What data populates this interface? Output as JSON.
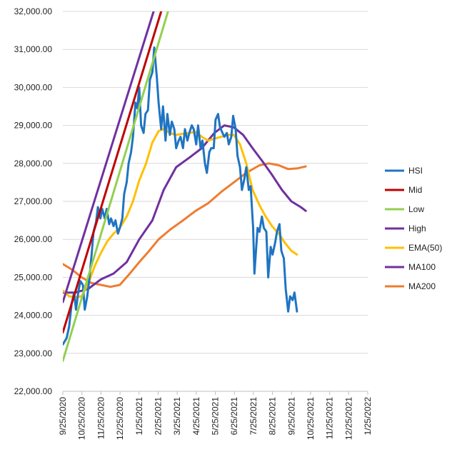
{
  "chart_data": {
    "type": "line",
    "title": "",
    "xlabel": "",
    "ylabel": "",
    "ylim": [
      22000,
      32000
    ],
    "y_ticks": [
      "22,000.00",
      "23,000.00",
      "24,000.00",
      "25,000.00",
      "26,000.00",
      "27,000.00",
      "28,000.00",
      "29,000.00",
      "30,000.00",
      "31,000.00",
      "32,000.00"
    ],
    "x_ticks": [
      "9/25/2020",
      "10/25/2020",
      "11/25/2020",
      "12/25/2020",
      "1/25/2021",
      "2/25/2021",
      "3/25/2021",
      "4/25/2021",
      "5/25/2021",
      "6/25/2021",
      "7/25/2021",
      "8/25/2021",
      "9/25/2021",
      "10/25/2021",
      "11/25/2021",
      "12/25/2021",
      "1/25/2022"
    ],
    "grid": "horizontal",
    "legend_position": "right",
    "series": [
      {
        "name": "HSI",
        "color": "#1f74c2",
        "points": [
          [
            "2020-09-25",
            23235
          ],
          [
            "2020-10-01",
            23400
          ],
          [
            "2020-10-05",
            23700
          ],
          [
            "2020-10-09",
            24300
          ],
          [
            "2020-10-13",
            24600
          ],
          [
            "2020-10-16",
            24150
          ],
          [
            "2020-10-20",
            24650
          ],
          [
            "2020-10-23",
            24900
          ],
          [
            "2020-10-27",
            24800
          ],
          [
            "2020-10-30",
            24150
          ],
          [
            "2020-11-03",
            24500
          ],
          [
            "2020-11-06",
            24900
          ],
          [
            "2020-11-10",
            25600
          ],
          [
            "2020-11-13",
            26200
          ],
          [
            "2020-11-17",
            26450
          ],
          [
            "2020-11-20",
            26850
          ],
          [
            "2020-11-24",
            26550
          ],
          [
            "2020-11-27",
            26800
          ],
          [
            "2020-12-01",
            26550
          ],
          [
            "2020-12-04",
            26800
          ],
          [
            "2020-12-08",
            26400
          ],
          [
            "2020-12-11",
            26550
          ],
          [
            "2020-12-15",
            26350
          ],
          [
            "2020-12-18",
            26500
          ],
          [
            "2020-12-22",
            26150
          ],
          [
            "2020-12-25",
            26300
          ],
          [
            "2020-12-29",
            26550
          ],
          [
            "2021-01-01",
            27200
          ],
          [
            "2021-01-05",
            27500
          ],
          [
            "2021-01-08",
            28000
          ],
          [
            "2021-01-12",
            28300
          ],
          [
            "2021-01-15",
            28700
          ],
          [
            "2021-01-19",
            29600
          ],
          [
            "2021-01-22",
            29450
          ],
          [
            "2021-01-25",
            30000
          ],
          [
            "2021-01-28",
            29000
          ],
          [
            "2021-02-01",
            28800
          ],
          [
            "2021-02-04",
            29300
          ],
          [
            "2021-02-08",
            29400
          ],
          [
            "2021-02-11",
            30200
          ],
          [
            "2021-02-15",
            30400
          ],
          [
            "2021-02-18",
            31050
          ],
          [
            "2021-02-22",
            30300
          ],
          [
            "2021-02-25",
            29600
          ],
          [
            "2021-03-01",
            28900
          ],
          [
            "2021-03-04",
            29500
          ],
          [
            "2021-03-08",
            28600
          ],
          [
            "2021-03-11",
            29300
          ],
          [
            "2021-03-15",
            28750
          ],
          [
            "2021-03-18",
            29100
          ],
          [
            "2021-03-22",
            28900
          ],
          [
            "2021-03-25",
            28400
          ],
          [
            "2021-03-29",
            28600
          ],
          [
            "2021-04-01",
            28700
          ],
          [
            "2021-04-05",
            28400
          ],
          [
            "2021-04-08",
            28900
          ],
          [
            "2021-04-12",
            28600
          ],
          [
            "2021-04-15",
            28800
          ],
          [
            "2021-04-19",
            29000
          ],
          [
            "2021-04-22",
            28900
          ],
          [
            "2021-04-26",
            28500
          ],
          [
            "2021-04-29",
            29000
          ],
          [
            "2021-05-03",
            28400
          ],
          [
            "2021-05-06",
            28600
          ],
          [
            "2021-05-10",
            28000
          ],
          [
            "2021-05-13",
            27750
          ],
          [
            "2021-05-17",
            28300
          ],
          [
            "2021-05-20",
            28400
          ],
          [
            "2021-05-24",
            28400
          ],
          [
            "2021-05-27",
            29150
          ],
          [
            "2021-05-31",
            29300
          ],
          [
            "2021-06-03",
            28950
          ],
          [
            "2021-06-07",
            28800
          ],
          [
            "2021-06-10",
            28700
          ],
          [
            "2021-06-14",
            28800
          ],
          [
            "2021-06-17",
            28500
          ],
          [
            "2021-06-21",
            28700
          ],
          [
            "2021-06-24",
            29250
          ],
          [
            "2021-06-28",
            28900
          ],
          [
            "2021-07-01",
            28200
          ],
          [
            "2021-07-05",
            27900
          ],
          [
            "2021-07-08",
            27300
          ],
          [
            "2021-07-12",
            27600
          ],
          [
            "2021-07-15",
            27900
          ],
          [
            "2021-07-19",
            27300
          ],
          [
            "2021-07-22",
            27400
          ],
          [
            "2021-07-26",
            26300
          ],
          [
            "2021-07-28",
            25100
          ],
          [
            "2021-08-02",
            26300
          ],
          [
            "2021-08-05",
            26200
          ],
          [
            "2021-08-09",
            26600
          ],
          [
            "2021-08-12",
            26300
          ],
          [
            "2021-08-16",
            26200
          ],
          [
            "2021-08-19",
            25000
          ],
          [
            "2021-08-23",
            25800
          ],
          [
            "2021-08-26",
            25600
          ],
          [
            "2021-08-30",
            25900
          ],
          [
            "2021-09-02",
            26200
          ],
          [
            "2021-09-06",
            26400
          ],
          [
            "2021-09-09",
            25700
          ],
          [
            "2021-09-13",
            25500
          ],
          [
            "2021-09-16",
            24700
          ],
          [
            "2021-09-20",
            24100
          ],
          [
            "2021-09-23",
            24500
          ],
          [
            "2021-09-27",
            24400
          ],
          [
            "2021-09-30",
            24600
          ],
          [
            "2021-10-04",
            24100
          ]
        ]
      },
      {
        "name": "Mid",
        "color": "#c00000",
        "points": [
          [
            "2020-09-25",
            23550
          ],
          [
            "2021-03-01",
            32000
          ]
        ]
      },
      {
        "name": "Low",
        "color": "#92d050",
        "points": [
          [
            "2020-09-25",
            22800
          ],
          [
            "2021-03-12",
            32000
          ]
        ]
      },
      {
        "name": "High",
        "color": "#7030a0",
        "points": [
          [
            "2020-09-25",
            24350
          ],
          [
            "2021-02-17",
            32000
          ]
        ]
      },
      {
        "name": "EMA(50)",
        "color": "#ffc000",
        "points": [
          [
            "2020-09-25",
            24650
          ],
          [
            "2020-10-05",
            24500
          ],
          [
            "2020-10-15",
            24480
          ],
          [
            "2020-10-25",
            24500
          ],
          [
            "2020-11-05",
            24850
          ],
          [
            "2020-11-15",
            25300
          ],
          [
            "2020-11-25",
            25650
          ],
          [
            "2020-12-05",
            25950
          ],
          [
            "2020-12-15",
            26150
          ],
          [
            "2020-12-25",
            26300
          ],
          [
            "2021-01-05",
            26600
          ],
          [
            "2021-01-15",
            27000
          ],
          [
            "2021-01-25",
            27550
          ],
          [
            "2021-02-05",
            28000
          ],
          [
            "2021-02-15",
            28550
          ],
          [
            "2021-02-25",
            28850
          ],
          [
            "2021-03-05",
            28900
          ],
          [
            "2021-03-15",
            28800
          ],
          [
            "2021-03-25",
            28750
          ],
          [
            "2021-04-05",
            28780
          ],
          [
            "2021-04-15",
            28800
          ],
          [
            "2021-04-25",
            28830
          ],
          [
            "2021-05-05",
            28700
          ],
          [
            "2021-05-15",
            28600
          ],
          [
            "2021-05-25",
            28650
          ],
          [
            "2021-06-05",
            28700
          ],
          [
            "2021-06-15",
            28750
          ],
          [
            "2021-06-25",
            28750
          ],
          [
            "2021-07-05",
            28500
          ],
          [
            "2021-07-15",
            28000
          ],
          [
            "2021-07-25",
            27300
          ],
          [
            "2021-08-05",
            26900
          ],
          [
            "2021-08-15",
            26600
          ],
          [
            "2021-08-25",
            26350
          ],
          [
            "2021-09-05",
            26150
          ],
          [
            "2021-09-15",
            25900
          ],
          [
            "2021-09-25",
            25700
          ],
          [
            "2021-10-04",
            25600
          ]
        ]
      },
      {
        "name": "MA100",
        "color": "#7030a0",
        "points": [
          [
            "2020-09-25",
            24600
          ],
          [
            "2020-10-15",
            24600
          ],
          [
            "2020-11-05",
            24700
          ],
          [
            "2020-11-25",
            24950
          ],
          [
            "2020-12-15",
            25100
          ],
          [
            "2021-01-05",
            25400
          ],
          [
            "2021-01-25",
            26000
          ],
          [
            "2021-02-15",
            26500
          ],
          [
            "2021-03-05",
            27300
          ],
          [
            "2021-03-25",
            27900
          ],
          [
            "2021-04-15",
            28150
          ],
          [
            "2021-05-05",
            28400
          ],
          [
            "2021-05-25",
            28800
          ],
          [
            "2021-06-10",
            29000
          ],
          [
            "2021-06-25",
            28950
          ],
          [
            "2021-07-10",
            28750
          ],
          [
            "2021-07-25",
            28400
          ],
          [
            "2021-08-10",
            28050
          ],
          [
            "2021-08-25",
            27700
          ],
          [
            "2021-09-10",
            27300
          ],
          [
            "2021-09-25",
            27000
          ],
          [
            "2021-10-10",
            26850
          ],
          [
            "2021-10-18",
            26750
          ]
        ]
      },
      {
        "name": "MA200",
        "color": "#ed7d31",
        "points": [
          [
            "2020-09-25",
            25350
          ],
          [
            "2020-10-10",
            25200
          ],
          [
            "2020-10-25",
            25000
          ],
          [
            "2020-11-10",
            24850
          ],
          [
            "2020-11-25",
            24800
          ],
          [
            "2020-12-10",
            24750
          ],
          [
            "2020-12-25",
            24800
          ],
          [
            "2021-01-10",
            25100
          ],
          [
            "2021-01-25",
            25400
          ],
          [
            "2021-02-10",
            25700
          ],
          [
            "2021-02-25",
            26000
          ],
          [
            "2021-03-15",
            26250
          ],
          [
            "2021-04-05",
            26500
          ],
          [
            "2021-04-25",
            26750
          ],
          [
            "2021-05-15",
            26950
          ],
          [
            "2021-06-05",
            27250
          ],
          [
            "2021-06-25",
            27500
          ],
          [
            "2021-07-15",
            27750
          ],
          [
            "2021-08-05",
            27950
          ],
          [
            "2021-08-20",
            28000
          ],
          [
            "2021-09-05",
            27950
          ],
          [
            "2021-09-20",
            27850
          ],
          [
            "2021-10-05",
            27870
          ],
          [
            "2021-10-18",
            27920
          ]
        ]
      }
    ]
  }
}
